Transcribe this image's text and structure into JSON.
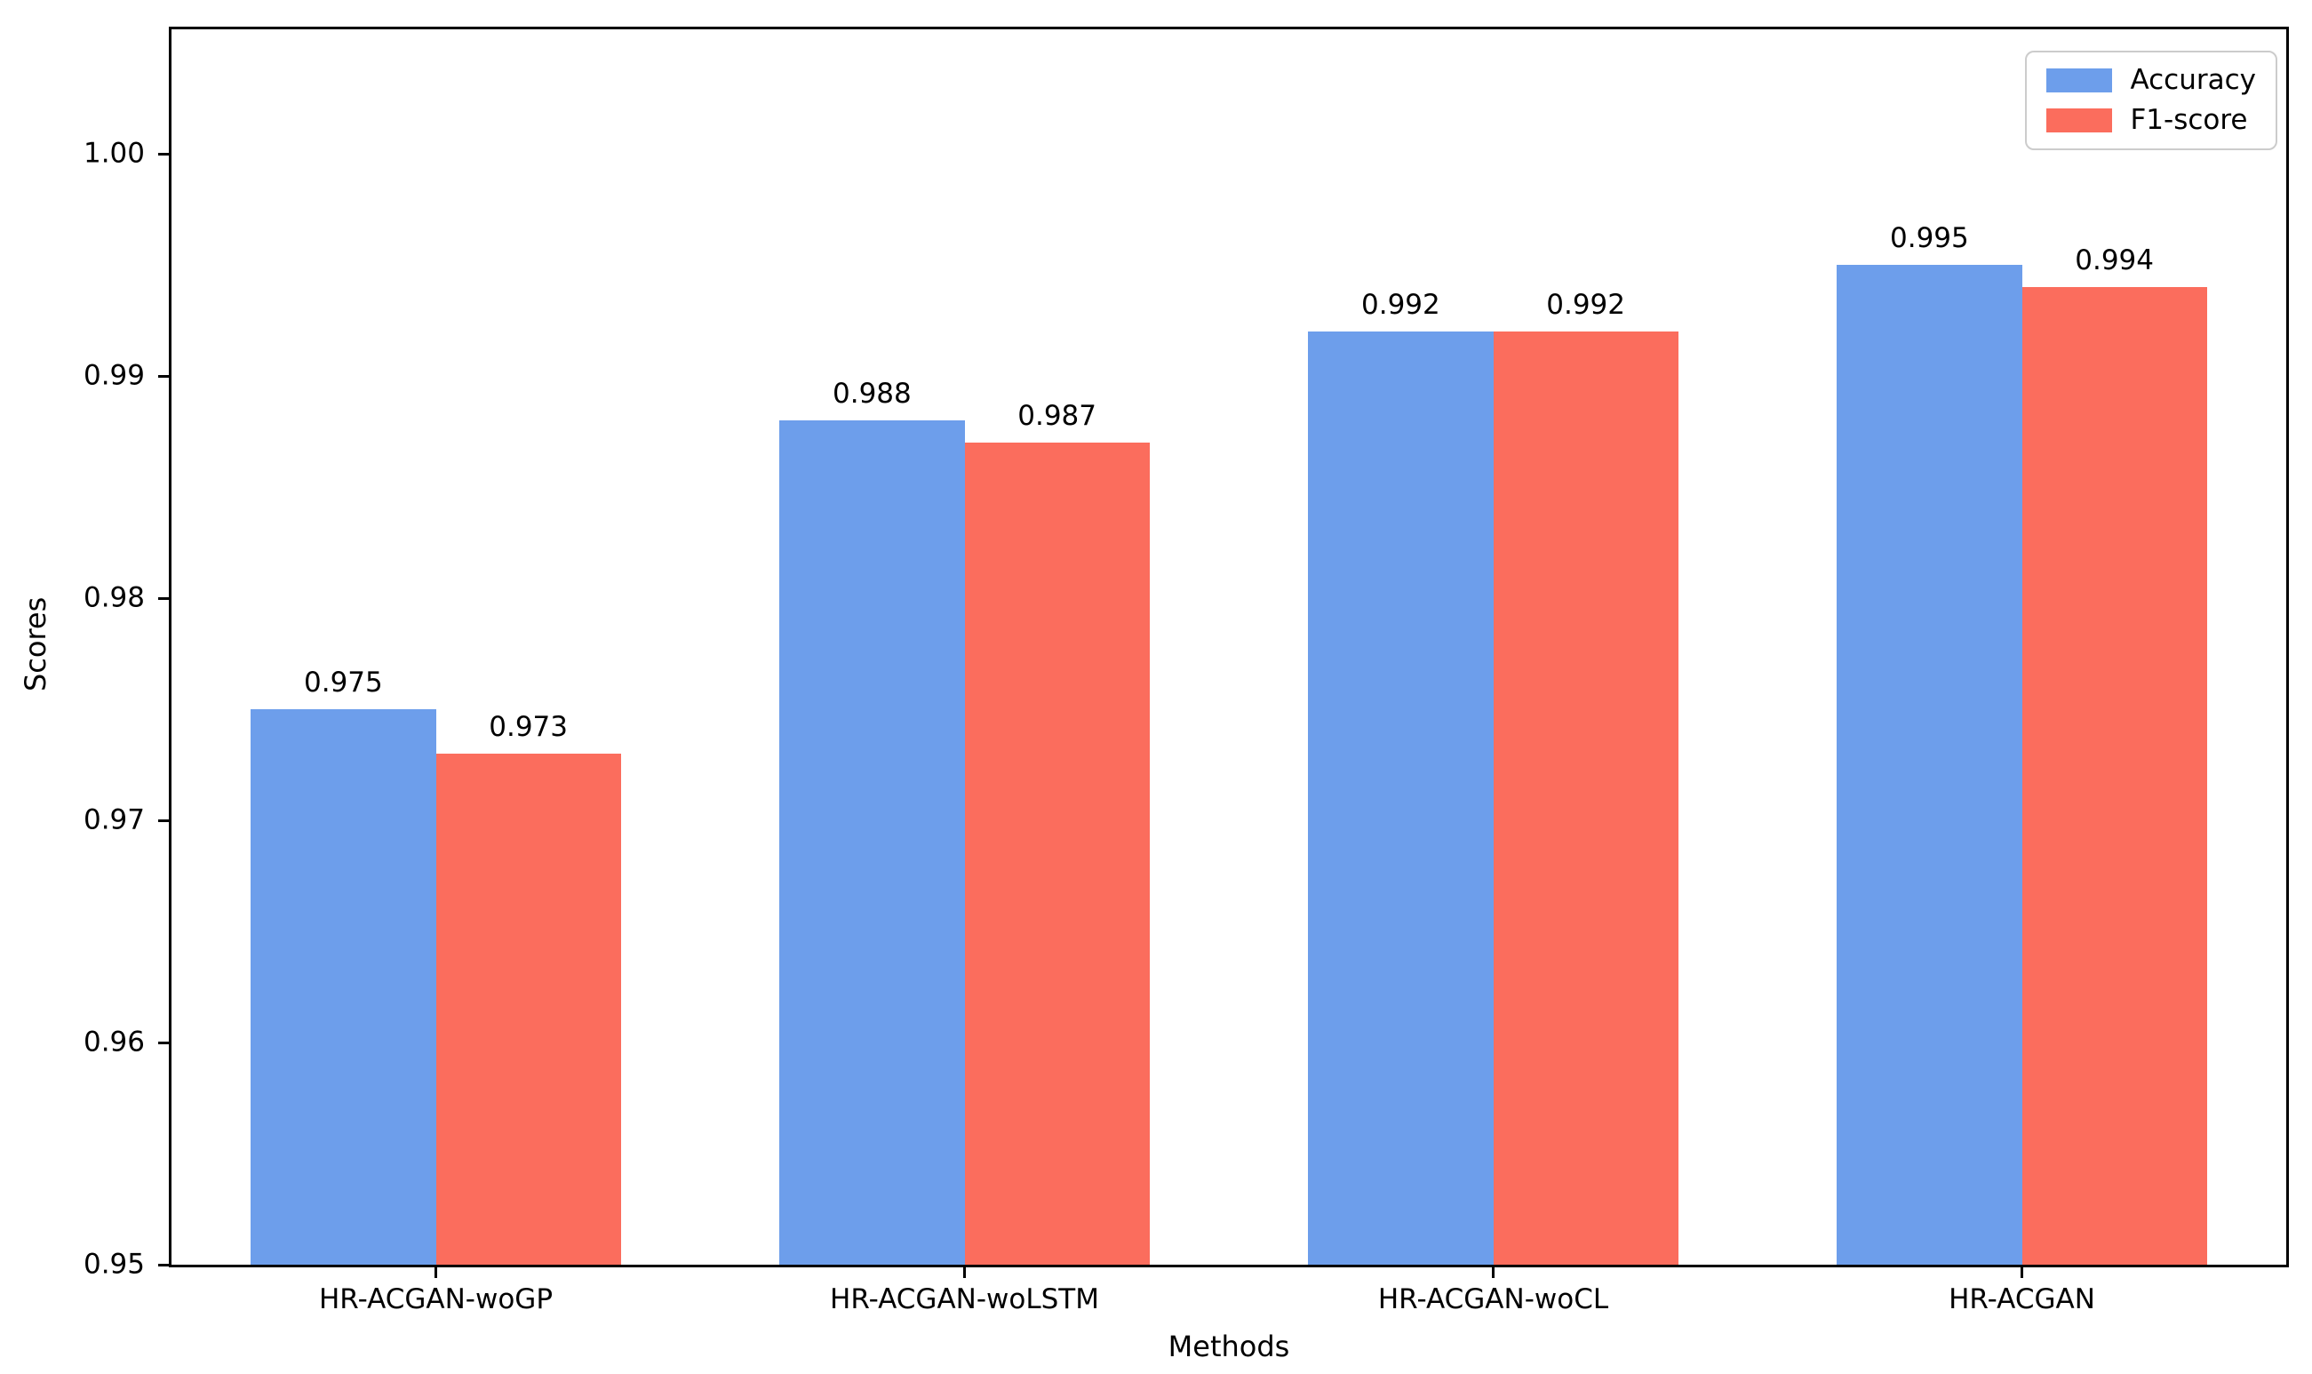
{
  "figure": {
    "background": "#ffffff",
    "text_color": "#000000",
    "spine_color": "#000000"
  },
  "chart_data": {
    "type": "bar",
    "title": "",
    "xlabel": "Methods",
    "ylabel": "Scores",
    "categories": [
      "HR-ACGAN-woGP",
      "HR-ACGAN-woLSTM",
      "HR-ACGAN-woCL",
      "HR-ACGAN"
    ],
    "series": [
      {
        "name": "Accuracy",
        "color": "#6D9EEB",
        "values": [
          0.975,
          0.988,
          0.992,
          0.995
        ],
        "value_labels": [
          "0.975",
          "0.988",
          "0.992",
          "0.995"
        ]
      },
      {
        "name": "F1-score",
        "color": "#FB6D5D",
        "values": [
          0.973,
          0.987,
          0.992,
          0.994
        ],
        "value_labels": [
          "0.973",
          "0.987",
          "0.992",
          "0.994"
        ]
      }
    ],
    "ylim": [
      0.95,
      1.0056
    ],
    "yticks": [
      0.95,
      0.96,
      0.97,
      0.98,
      0.99,
      1.0
    ],
    "ytick_labels": [
      "0.95",
      "0.96",
      "0.97",
      "0.98",
      "0.99",
      "1.00"
    ],
    "grid": false,
    "legend": {
      "position": "upper right",
      "entries": [
        "Accuracy",
        "F1-score"
      ]
    },
    "bar_value_labels_shown": true
  }
}
